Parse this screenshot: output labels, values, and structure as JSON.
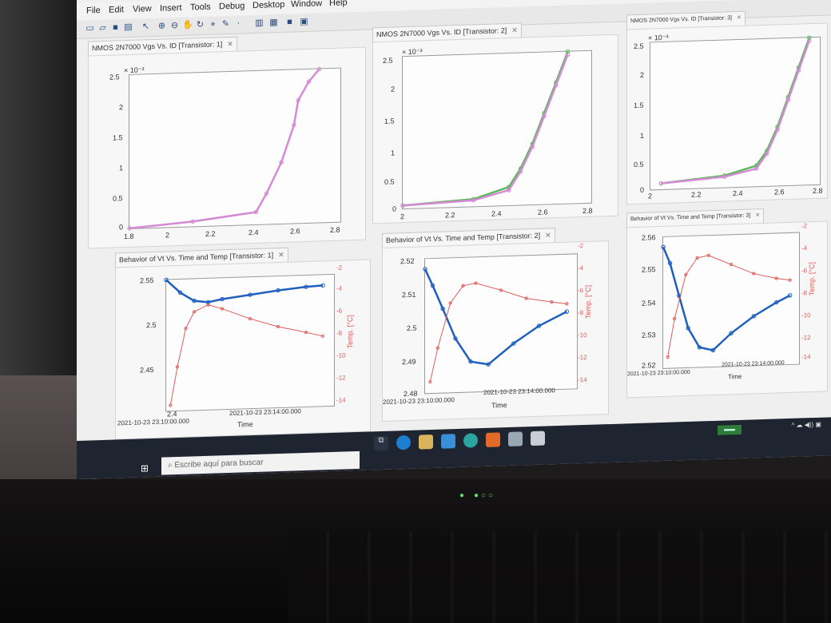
{
  "menubar": {
    "items": [
      "File",
      "Edit",
      "View",
      "Insert",
      "Tools",
      "Debug",
      "Desktop",
      "Window",
      "Help"
    ]
  },
  "toolbar": {
    "icons": [
      "new-figure-icon",
      "open-icon",
      "save-icon",
      "print-icon",
      "pointer-icon",
      "zoom-in-icon",
      "zoom-out-icon",
      "pan-icon",
      "rotate-icon",
      "data-cursor-icon",
      "brush-icon",
      "link-icon",
      "insert-colorbar-icon",
      "insert-legend-icon",
      "hide-plot-tools-icon",
      "show-plot-tools-icon"
    ]
  },
  "figures": [
    {
      "id": 1,
      "top_tab": "NMOS 2N7000 Vgs Vs. ID [Transistor: 1]",
      "bottom_tab": "Behavior of Vt Vs. Time and Temp [Transistor: 1]",
      "top_chart": {
        "exponent": "× 10⁻³",
        "yticks": [
          "2.5",
          "2",
          "1.5",
          "1",
          "0.5",
          "0"
        ],
        "xticks": [
          "1.8",
          "2",
          "2.2",
          "2.4",
          "2.6",
          "2.8"
        ]
      },
      "bottom_chart": {
        "yticks": [
          "2.55",
          "2.5",
          "2.45",
          "2.4"
        ],
        "yticks_right": [
          "-2",
          "-4",
          "-6",
          "-8",
          "-10",
          "-12",
          "-14"
        ],
        "xticks": [
          "2021-10-23 23:10:00.000",
          "2021-10-23 23:14:00.000"
        ],
        "xlabel": "Time",
        "ylabel_right": "Temp. [°C]"
      }
    },
    {
      "id": 2,
      "top_tab": "NMOS 2N7000 Vgs Vs. ID [Transistor: 2]",
      "bottom_tab": "Behavior of Vt Vs. Time and Temp [Transistor: 2]",
      "top_chart": {
        "exponent": "× 10⁻³",
        "yticks": [
          "2.5",
          "2",
          "1.5",
          "1",
          "0.5",
          "0"
        ],
        "xticks": [
          "2",
          "2.2",
          "2.4",
          "2.6",
          "2.8"
        ]
      },
      "bottom_chart": {
        "yticks": [
          "2.52",
          "2.51",
          "2.5",
          "2.49",
          "2.48"
        ],
        "yticks_right": [
          "-2",
          "-4",
          "-6",
          "-8",
          "-10",
          "-12",
          "-14"
        ],
        "xticks": [
          "2021-10-23 23:10:00.000",
          "2021-10-23 23:14:00.000"
        ],
        "xlabel": "Time",
        "ylabel_right": "Temp. [°C]"
      }
    },
    {
      "id": 3,
      "top_tab": "NMOS 2N7000 Vgs Vs. ID [Transistor: 3]",
      "bottom_tab": "Behavior of Vt Vs. Time and Temp [Transistor: 3]",
      "top_chart": {
        "exponent": "× 10⁻³",
        "yticks": [
          "2.5",
          "2",
          "1.5",
          "1",
          "0.5",
          "0"
        ],
        "xticks": [
          "2",
          "2.2",
          "2.4",
          "2.6",
          "2.8"
        ]
      },
      "bottom_chart": {
        "yticks": [
          "2.56",
          "2.55",
          "2.54",
          "2.53",
          "2.52"
        ],
        "yticks_right": [
          "-2",
          "-4",
          "-6",
          "-8",
          "-10",
          "-12",
          "-14"
        ],
        "xticks": [
          "2021-10-23 23:10:00.000",
          "2021-10-23 23:14:00.000"
        ],
        "xlabel": "Time",
        "ylabel_right": "Temp. [°C]"
      }
    }
  ],
  "taskbar": {
    "search_placeholder": "Escribe aquí para buscar"
  },
  "colors": {
    "iv_magenta": "#d58ad6",
    "iv_green": "#5cb85c",
    "vt_blue": "#1f5fbf",
    "temp_red": "#e05a5a"
  },
  "chart_data": [
    {
      "type": "line",
      "title": "NMOS 2N7000 Vgs Vs. ID [Transistor: 1]",
      "xlabel": "",
      "ylabel": "",
      "xlim": [
        1.8,
        2.8
      ],
      "ylim": [
        0,
        2.5
      ],
      "y_exponent": "x10^-3",
      "series": [
        {
          "color": "#d58ad6",
          "x": [
            1.8,
            2.1,
            2.4,
            2.45,
            2.52,
            2.58,
            2.6,
            2.65,
            2.7
          ],
          "y": [
            0.0,
            0.08,
            0.2,
            0.5,
            1.0,
            1.6,
            2.0,
            2.3,
            2.5
          ]
        }
      ]
    },
    {
      "type": "line",
      "title": "NMOS 2N7000 Vgs Vs. ID [Transistor: 2]",
      "xlabel": "",
      "ylabel": "",
      "xlim": [
        2.0,
        2.8
      ],
      "ylim": [
        0,
        2.5
      ],
      "y_exponent": "x10^-3",
      "series": [
        {
          "color": "#5cb85c",
          "x": [
            2.0,
            2.3,
            2.45,
            2.5,
            2.55,
            2.6,
            2.65,
            2.7
          ],
          "y": [
            0.05,
            0.12,
            0.3,
            0.6,
            1.0,
            1.5,
            2.0,
            2.5
          ]
        },
        {
          "color": "#d58ad6",
          "x": [
            2.0,
            2.3,
            2.45,
            2.5,
            2.55,
            2.6,
            2.65,
            2.7
          ],
          "y": [
            0.05,
            0.1,
            0.25,
            0.55,
            0.95,
            1.45,
            1.95,
            2.45
          ]
        }
      ]
    },
    {
      "type": "line",
      "title": "NMOS 2N7000 Vgs Vs. ID [Transistor: 3]",
      "xlabel": "",
      "ylabel": "",
      "xlim": [
        2.0,
        2.8
      ],
      "ylim": [
        0,
        2.5
      ],
      "y_exponent": "x10^-3",
      "series": [
        {
          "color": "#5cb85c",
          "x": [
            2.05,
            2.35,
            2.5,
            2.55,
            2.6,
            2.65,
            2.7,
            2.75
          ],
          "y": [
            0.1,
            0.2,
            0.35,
            0.6,
            1.0,
            1.5,
            2.0,
            2.5
          ]
        },
        {
          "color": "#d58ad6",
          "x": [
            2.05,
            2.35,
            2.5,
            2.55,
            2.6,
            2.65,
            2.7,
            2.75
          ],
          "y": [
            0.1,
            0.18,
            0.3,
            0.55,
            0.95,
            1.45,
            1.95,
            2.45
          ]
        }
      ]
    },
    {
      "type": "line",
      "title": "Behavior of Vt Vs. Time and Temp [Transistor: 1]",
      "xlabel": "Time",
      "ylabel": "",
      "ylabel_right": "Temp. [°C]",
      "xlim": [
        0,
        6
      ],
      "ylim": [
        2.4,
        2.55
      ],
      "ylim_right": [
        -14,
        -2
      ],
      "series": [
        {
          "axis": "left",
          "color": "#1f5fbf",
          "x": [
            0,
            0.5,
            1,
            1.5,
            2,
            3,
            4,
            5,
            5.6
          ],
          "y": [
            2.55,
            2.535,
            2.525,
            2.523,
            2.526,
            2.53,
            2.534,
            2.537,
            2.538
          ]
        },
        {
          "axis": "right",
          "color": "#e05a5a",
          "x": [
            0.15,
            0.4,
            0.7,
            1,
            1.5,
            2,
            3,
            4,
            5,
            5.6
          ],
          "y": [
            -13.5,
            -10,
            -6.5,
            -5,
            -4.4,
            -4.8,
            -5.8,
            -6.6,
            -7.2,
            -7.6
          ]
        }
      ]
    },
    {
      "type": "line",
      "title": "Behavior of Vt Vs. Time and Temp [Transistor: 2]",
      "xlabel": "Time",
      "ylabel": "",
      "ylabel_right": "Temp. [°C]",
      "xlim": [
        0,
        6
      ],
      "ylim": [
        2.48,
        2.52
      ],
      "ylim_right": [
        -14,
        -2
      ],
      "series": [
        {
          "axis": "left",
          "color": "#1f5fbf",
          "x": [
            0,
            0.3,
            0.7,
            1.2,
            1.8,
            2.5,
            3.5,
            4.5,
            5.6
          ],
          "y": [
            2.517,
            2.512,
            2.505,
            2.496,
            2.489,
            2.488,
            2.494,
            2.499,
            2.503
          ]
        },
        {
          "axis": "right",
          "color": "#e05a5a",
          "x": [
            0.2,
            0.5,
            1,
            1.5,
            2,
            3,
            4,
            5,
            5.6
          ],
          "y": [
            -13,
            -10,
            -6,
            -4.5,
            -4.3,
            -5,
            -5.8,
            -6.2,
            -6.4
          ]
        }
      ]
    },
    {
      "type": "line",
      "title": "Behavior of Vt Vs. Time and Temp [Transistor: 3]",
      "xlabel": "Time",
      "ylabel": "",
      "ylabel_right": "Temp. [°C]",
      "xlim": [
        0,
        6
      ],
      "ylim": [
        2.52,
        2.56
      ],
      "ylim_right": [
        -14,
        -2
      ],
      "series": [
        {
          "axis": "left",
          "color": "#1f5fbf",
          "x": [
            0,
            0.3,
            0.7,
            1.1,
            1.6,
            2.2,
            3,
            4,
            5,
            5.6
          ],
          "y": [
            2.557,
            2.552,
            2.542,
            2.532,
            2.526,
            2.525,
            2.53,
            2.535,
            2.539,
            2.541
          ]
        },
        {
          "axis": "right",
          "color": "#e05a5a",
          "x": [
            0.2,
            0.5,
            1,
            1.5,
            2,
            3,
            4,
            5,
            5.6
          ],
          "y": [
            -13,
            -9.5,
            -5.5,
            -4,
            -3.8,
            -4.7,
            -5.6,
            -6.1,
            -6.3
          ]
        }
      ]
    }
  ]
}
